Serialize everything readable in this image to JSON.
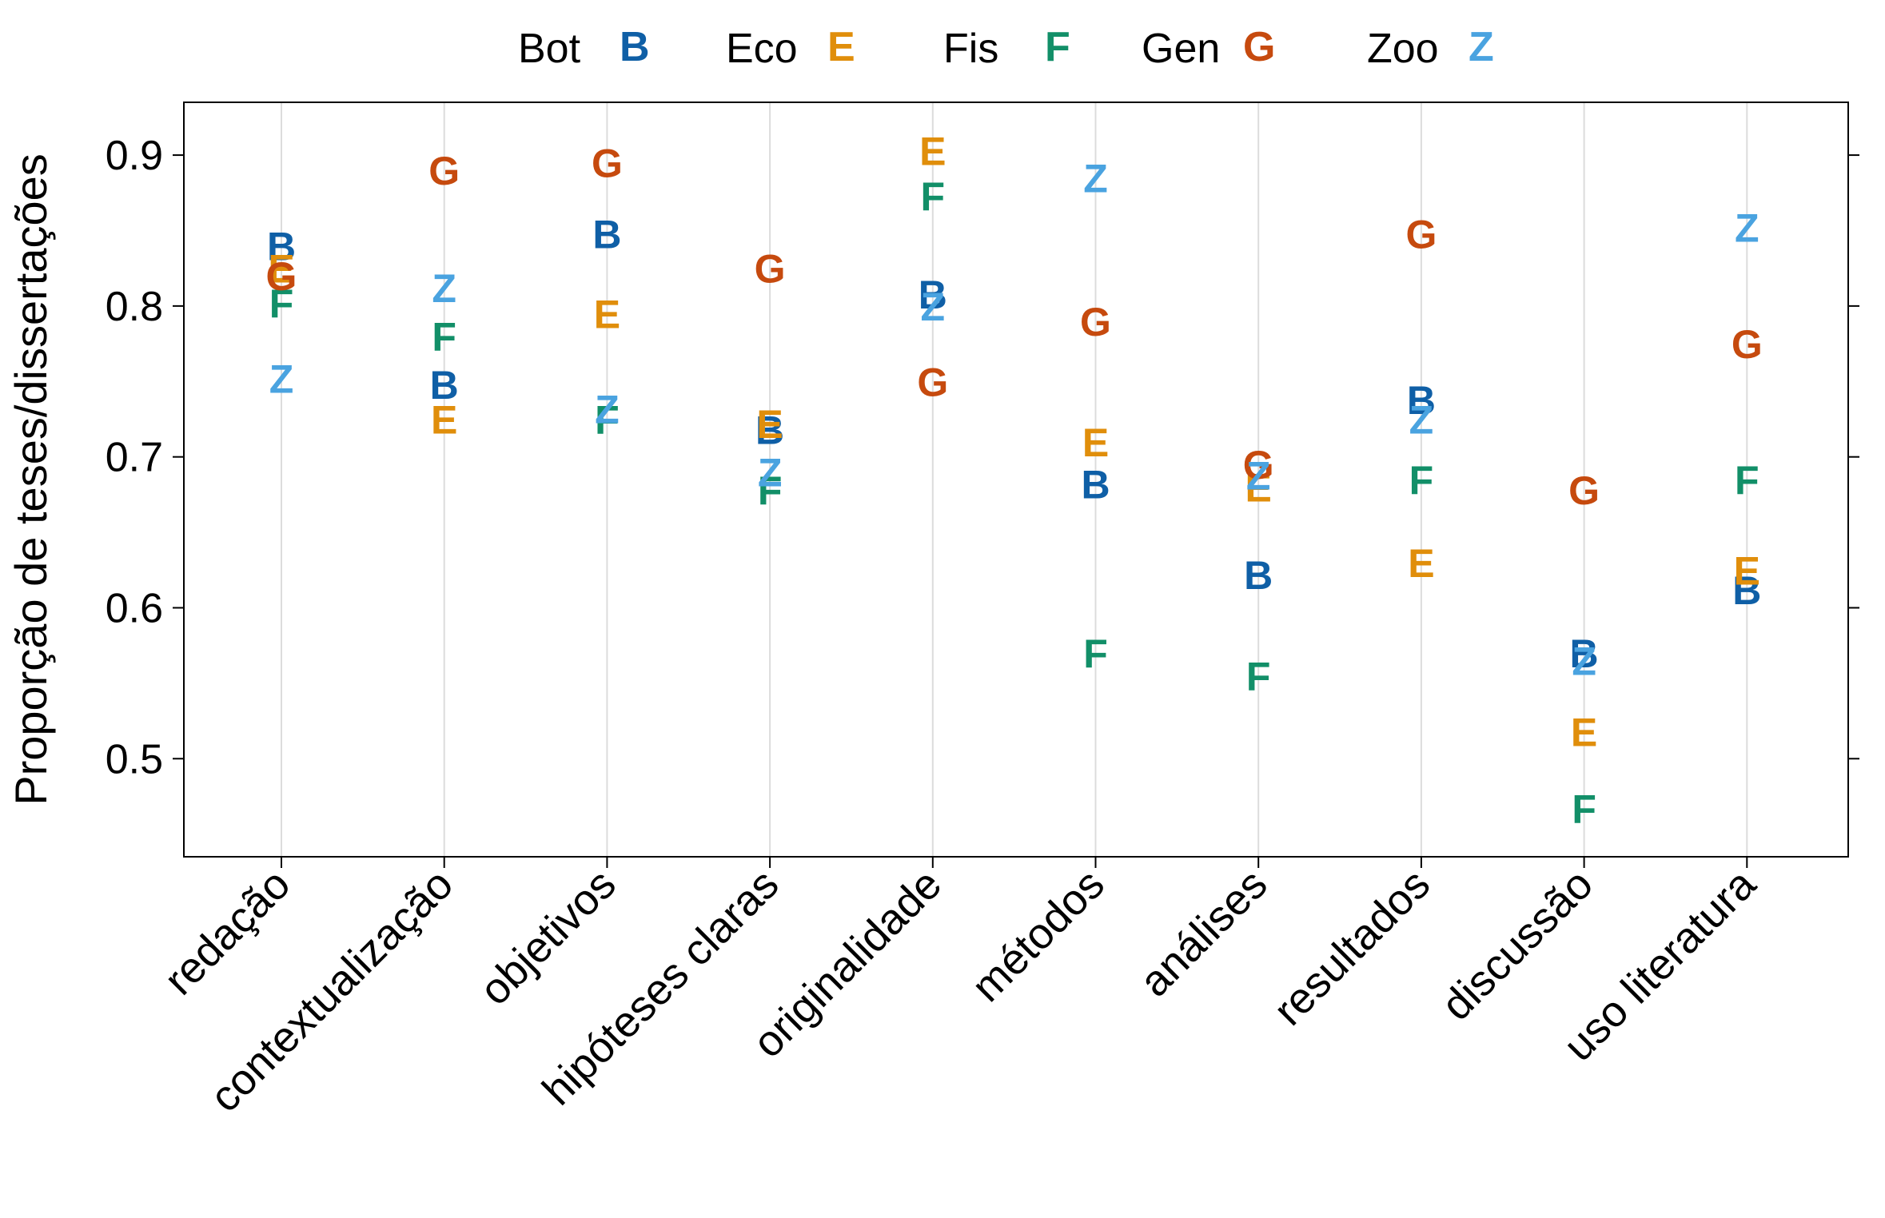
{
  "chart_data": {
    "type": "scatter",
    "title": "",
    "xlabel": "",
    "ylabel": "Proporção de teses/dissertações",
    "ylim": [
      0.435,
      0.935
    ],
    "yticks": [
      0.5,
      0.6,
      0.7,
      0.8,
      0.9
    ],
    "ytick_labels": [
      "0.5",
      "0.6",
      "0.7",
      "0.8",
      "0.9"
    ],
    "grid": "vertical lines at categories",
    "legend_position": "top",
    "categories": [
      "redação",
      "contextualização",
      "objetivos",
      "hipóteses claras",
      "originalidade",
      "métodos",
      "análises",
      "resultados",
      "discussão",
      "uso literatura"
    ],
    "series": [
      {
        "name": "Bot",
        "symbol": "B",
        "color": "#0F5FA6",
        "values": [
          0.84,
          0.748,
          0.848,
          0.718,
          0.808,
          0.682,
          0.622,
          0.738,
          0.57,
          0.612
        ]
      },
      {
        "name": "Eco",
        "symbol": "E",
        "color": "#E08E0B",
        "values": [
          0.825,
          0.725,
          0.795,
          0.722,
          0.903,
          0.71,
          0.68,
          0.63,
          0.518,
          0.625
        ]
      },
      {
        "name": "Fis",
        "symbol": "F",
        "color": "#128F68",
        "values": [
          0.802,
          0.78,
          0.725,
          0.678,
          0.873,
          0.57,
          0.555,
          0.685,
          0.467,
          0.685
        ]
      },
      {
        "name": "Gen",
        "symbol": "G",
        "color": "#C64A0E",
        "values": [
          0.82,
          0.89,
          0.895,
          0.825,
          0.75,
          0.79,
          0.695,
          0.848,
          0.678,
          0.775
        ]
      },
      {
        "name": "Zoo",
        "symbol": "Z",
        "color": "#4AA3E0",
        "values": [
          0.752,
          0.812,
          0.732,
          0.69,
          0.8,
          0.885,
          0.688,
          0.725,
          0.565,
          0.852
        ]
      }
    ]
  }
}
